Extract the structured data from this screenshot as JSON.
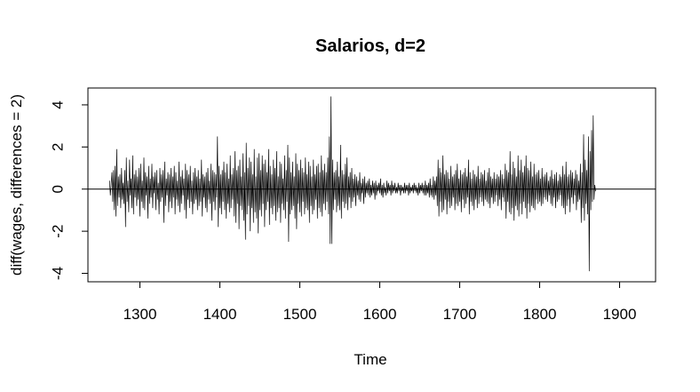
{
  "chart_data": {
    "type": "line",
    "title": "Salarios, d=2",
    "xlabel": "Time",
    "ylabel": "diff(wages, differences = 2)",
    "x_ticks": [
      1300,
      1400,
      1500,
      1600,
      1700,
      1800,
      1900
    ],
    "x_tick_labels": [
      "1300",
      "1400",
      "1500",
      "1600",
      "1700",
      "1800",
      "1900"
    ],
    "y_ticks": [
      -4,
      -2,
      0,
      2,
      4
    ],
    "y_tick_labels": [
      "-4",
      "-2",
      "0",
      "2",
      "4"
    ],
    "xlim": [
      1235,
      1945
    ],
    "ylim": [
      -4.4,
      4.8
    ],
    "reference_line_y": 0,
    "grid": false,
    "series": [
      {
        "x_start": 1262,
        "x_step": 1,
        "values": [
          0.4,
          -0.3,
          0.2,
          0.8,
          -0.6,
          0.9,
          -1.0,
          1.1,
          -1.3,
          1.9,
          -0.8,
          0.6,
          -0.4,
          0.7,
          -0.9,
          1.0,
          -0.5,
          0.3,
          -0.7,
          0.9,
          -1.8,
          1.5,
          -0.6,
          0.4,
          -1.1,
          1.4,
          -0.3,
          0.5,
          -0.9,
          1.6,
          -1.2,
          0.7,
          -0.4,
          0.9,
          -0.8,
          0.6,
          -0.5,
          1.0,
          -1.3,
          1.2,
          -0.6,
          0.4,
          -0.9,
          1.5,
          -1.0,
          0.8,
          -0.3,
          0.6,
          -1.4,
          1.1,
          -0.7,
          0.5,
          -0.4,
          1.2,
          -0.9,
          0.6,
          -0.2,
          0.8,
          -1.0,
          0.9,
          -0.5,
          0.3,
          -1.2,
          1.0,
          -0.6,
          0.7,
          -0.4,
          0.9,
          -1.6,
          1.3,
          -0.8,
          0.5,
          -0.3,
          0.8,
          -1.1,
          0.7,
          -0.6,
          1.0,
          -0.9,
          0.6,
          -0.4,
          1.1,
          -1.2,
          0.8,
          -0.5,
          0.4,
          -0.8,
          1.3,
          -1.1,
          0.6,
          -0.7,
          0.9,
          -0.3,
          0.5,
          -1.0,
          1.2,
          -1.4,
          0.9,
          -0.5,
          0.7,
          -0.9,
          1.1,
          -0.6,
          0.4,
          -1.2,
          0.8,
          -0.7,
          1.0,
          -0.5,
          0.6,
          -1.0,
          0.9,
          -0.8,
          0.5,
          -0.6,
          1.4,
          -1.3,
          0.7,
          -0.4,
          0.6,
          -0.9,
          0.8,
          -1.1,
          1.0,
          -0.5,
          0.4,
          -0.7,
          1.2,
          -1.5,
          0.9,
          -0.6,
          0.8,
          -1.0,
          0.7,
          -0.4,
          2.5,
          -1.8,
          1.1,
          -0.9,
          0.7,
          -1.2,
          0.9,
          -0.6,
          1.3,
          -1.0,
          0.8,
          -1.4,
          1.2,
          -0.7,
          0.5,
          -1.1,
          1.6,
          -0.9,
          0.7,
          -0.5,
          1.0,
          -1.3,
          1.8,
          -1.6,
          0.9,
          -0.7,
          1.1,
          -1.9,
          1.4,
          -0.8,
          0.6,
          -1.0,
          1.7,
          -1.5,
          0.8,
          -2.4,
          2.2,
          -1.2,
          1.0,
          -0.8,
          1.5,
          -2.0,
          1.3,
          -0.9,
          0.7,
          -1.6,
          1.9,
          -1.1,
          0.6,
          -1.4,
          1.5,
          -2.1,
          1.7,
          -1.0,
          0.9,
          -1.3,
          1.6,
          -0.7,
          1.2,
          -1.8,
          1.4,
          -1.0,
          0.8,
          -0.6,
          1.9,
          -1.7,
          1.1,
          -0.9,
          0.7,
          -1.2,
          1.4,
          -0.8,
          1.0,
          -1.5,
          1.8,
          -1.1,
          0.6,
          -0.9,
          1.3,
          -1.6,
          1.2,
          -0.7,
          0.5,
          -1.0,
          1.6,
          -1.4,
          0.9,
          -0.6,
          2.1,
          -2.5,
          1.5,
          -1.2,
          0.8,
          -1.0,
          1.3,
          -0.8,
          0.6,
          -1.4,
          1.7,
          -1.9,
          1.2,
          -0.7,
          0.9,
          -1.1,
          1.4,
          -1.3,
          1.0,
          -0.6,
          0.8,
          -1.2,
          1.5,
          -0.9,
          0.7,
          -1.0,
          1.3,
          -1.6,
          1.1,
          -0.8,
          0.6,
          -1.2,
          1.4,
          -1.0,
          0.7,
          -0.5,
          1.1,
          -1.4,
          1.2,
          -0.9,
          0.8,
          -1.1,
          1.6,
          -1.3,
          0.9,
          -0.7,
          1.2,
          -1.0,
          0.8,
          -0.6,
          1.5,
          -1.2,
          2.5,
          -2.6,
          4.4,
          -2.6,
          1.4,
          -1.0,
          0.8,
          -0.5,
          0.9,
          -1.1,
          1.3,
          -0.8,
          0.6,
          -1.0,
          2.1,
          -1.4,
          0.9,
          -0.6,
          0.7,
          -0.9,
          1.2,
          -0.7,
          1.5,
          -1.0,
          0.6,
          -0.4,
          0.8,
          -0.9,
          1.0,
          -0.6,
          0.5,
          -0.4,
          0.7,
          -0.8,
          0.6,
          -0.3,
          0.4,
          -0.5,
          0.8,
          -0.6,
          0.3,
          -0.2,
          0.5,
          -0.7,
          0.6,
          -0.4,
          0.3,
          -0.2,
          0.4,
          -0.3,
          0.5,
          -0.4,
          0.2,
          -0.3,
          0.4,
          -0.2,
          0.3,
          -0.5,
          0.4,
          -0.3,
          0.2,
          -0.1,
          0.3,
          -0.2,
          0.5,
          -0.3,
          0.2,
          -0.4,
          0.3,
          -0.2,
          0.1,
          -0.3,
          0.4,
          -0.2,
          0.3,
          -0.1,
          0.2,
          -0.3,
          0.4,
          -0.2,
          0.2,
          -0.1,
          0.3,
          -0.2,
          0.1,
          -0.2,
          0.3,
          -0.1,
          0.2,
          -0.3,
          0.2,
          -0.1,
          0.1,
          -0.2,
          0.3,
          -0.2,
          0.2,
          -0.1,
          0.2,
          -0.3,
          0.3,
          -0.2,
          0.1,
          -0.1,
          0.2,
          -0.2,
          0.3,
          -0.1,
          0.2,
          -0.2,
          0.1,
          -0.3,
          0.3,
          -0.2,
          0.2,
          -0.1,
          0.3,
          -0.2,
          0.2,
          -0.3,
          0.4,
          -0.3,
          0.2,
          -0.2,
          0.3,
          -0.4,
          0.5,
          -0.3,
          0.2,
          -0.4,
          0.6,
          -0.5,
          0.4,
          -0.3,
          0.6,
          -0.8,
          1.4,
          -1.3,
          1.0,
          -0.6,
          0.8,
          -1.1,
          1.6,
          -1.0,
          0.7,
          -0.5,
          0.9,
          -1.2,
          0.8,
          -0.6,
          0.5,
          -0.9,
          1.1,
          -0.8,
          0.6,
          -0.4,
          0.7,
          -1.0,
          0.9,
          -0.7,
          1.2,
          -0.8,
          0.5,
          -0.6,
          0.9,
          -1.1,
          0.7,
          -0.5,
          0.8,
          -0.9,
          1.0,
          -0.7,
          0.6,
          -0.4,
          1.4,
          -1.2,
          0.8,
          -0.6,
          0.5,
          -0.8,
          0.9,
          -1.0,
          0.7,
          -0.5,
          0.6,
          -0.9,
          1.1,
          -0.7,
          0.5,
          -0.4,
          0.8,
          -0.6,
          0.7,
          -0.8,
          0.9,
          -0.5,
          0.4,
          -0.6,
          0.8,
          -0.7,
          1.0,
          -0.9,
          0.6,
          -0.4,
          0.5,
          -0.7,
          0.8,
          -0.6,
          0.5,
          -0.3,
          0.7,
          -0.8,
          0.6,
          -0.5,
          0.9,
          -1.0,
          0.7,
          -0.4,
          0.5,
          -0.6,
          1.2,
          -1.4,
          0.9,
          -0.6,
          0.8,
          -1.1,
          1.8,
          -1.2,
          0.7,
          -0.9,
          1.3,
          -1.5,
          1.0,
          -0.8,
          0.6,
          -1.0,
          1.6,
          -1.3,
          0.9,
          -0.7,
          1.4,
          -1.2,
          0.8,
          -0.6,
          1.1,
          -0.9,
          1.6,
          -1.4,
          1.0,
          -0.7,
          0.9,
          -1.1,
          1.3,
          -0.8,
          0.6,
          -0.9,
          1.2,
          -1.0,
          0.7,
          -0.5,
          0.8,
          -0.7,
          0.9,
          -0.6,
          0.5,
          -0.8,
          1.0,
          -0.7,
          0.6,
          -0.4,
          0.7,
          -0.5,
          0.8,
          -0.6,
          0.4,
          -0.3,
          0.6,
          -0.7,
          0.9,
          -0.8,
          0.5,
          -0.4,
          0.7,
          -0.9,
          0.8,
          -0.6,
          0.4,
          -0.5,
          0.7,
          -0.3,
          0.6,
          -0.8,
          1.1,
          -0.9,
          0.7,
          -1.2,
          1.3,
          -0.8,
          0.6,
          -0.5,
          0.7,
          -1.1,
          0.9,
          -0.4,
          0.8,
          -0.7,
          0.5,
          -0.3,
          0.9,
          -1.0,
          0.7,
          -0.6,
          0.4,
          -0.5,
          1.2,
          -1.6,
          0.8,
          -0.9,
          2.6,
          -1.5,
          1.4,
          -0.7,
          0.9,
          -1.2,
          2.5,
          -3.9,
          1.8,
          -1.0,
          2.8,
          -0.6,
          3.5,
          -0.5,
          0.2,
          -0.1
        ]
      }
    ]
  }
}
